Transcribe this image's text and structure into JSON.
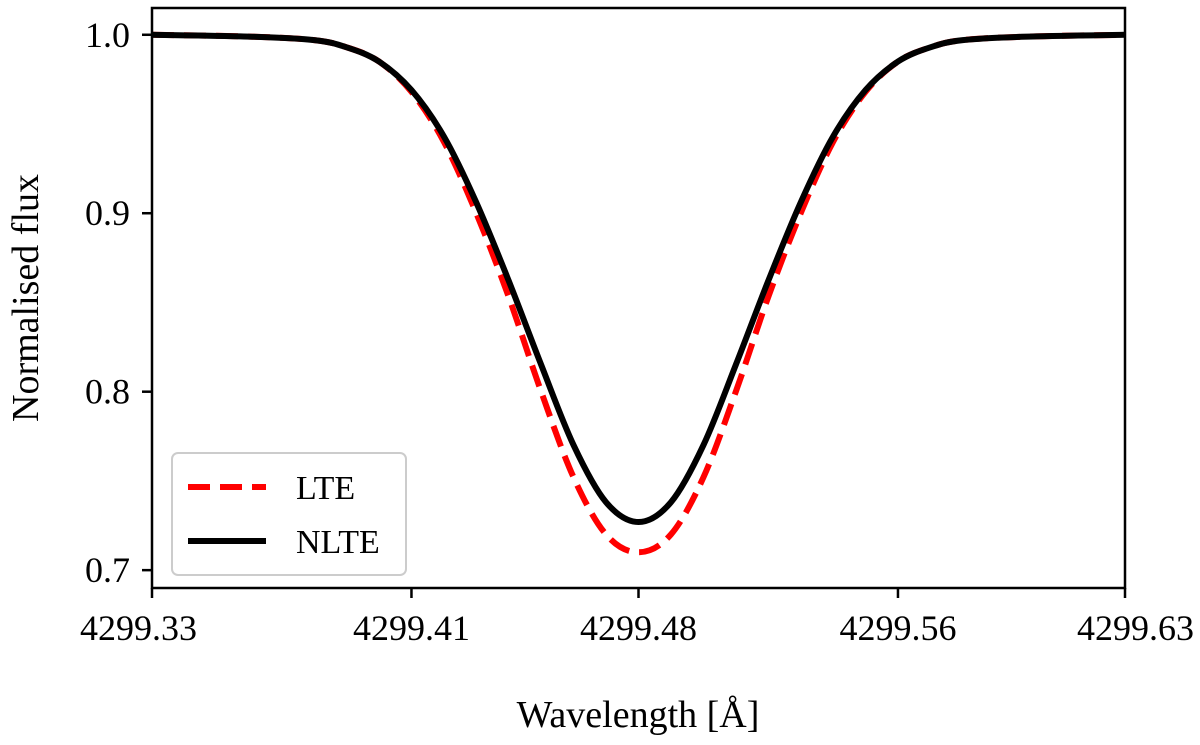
{
  "chart_data": {
    "type": "line",
    "title": "",
    "xlabel": "Wavelength [Å]",
    "ylabel": "Normalised flux",
    "xlim": [
      4299.33,
      4299.63
    ],
    "ylim": [
      0.69,
      1.015
    ],
    "xticks": [
      4299.33,
      4299.41,
      4299.48,
      4299.56,
      4299.63
    ],
    "xtick_labels": [
      "4299.33",
      "4299.41",
      "4299.48",
      "4299.56",
      "4299.63"
    ],
    "yticks": [
      0.7,
      0.8,
      0.9,
      1.0
    ],
    "ytick_labels": [
      "0.7",
      "0.8",
      "0.9",
      "1.0"
    ],
    "grid": false,
    "legend_position": "lower-left",
    "series": [
      {
        "name": "LTE",
        "color": "#ff0000",
        "style": "dashed",
        "x": [
          4299.33,
          4299.36,
          4299.38,
          4299.39,
          4299.4,
          4299.41,
          4299.42,
          4299.43,
          4299.44,
          4299.45,
          4299.46,
          4299.47,
          4299.48,
          4299.49,
          4299.5,
          4299.51,
          4299.52,
          4299.53,
          4299.54,
          4299.55,
          4299.56,
          4299.57,
          4299.58,
          4299.6,
          4299.63
        ],
        "y": [
          1.0,
          0.999,
          0.997,
          0.993,
          0.985,
          0.968,
          0.94,
          0.9,
          0.853,
          0.8,
          0.752,
          0.72,
          0.71,
          0.72,
          0.752,
          0.8,
          0.853,
          0.9,
          0.94,
          0.968,
          0.985,
          0.993,
          0.997,
          0.999,
          1.0
        ]
      },
      {
        "name": "NLTE",
        "color": "#000000",
        "style": "solid",
        "x": [
          4299.33,
          4299.36,
          4299.38,
          4299.39,
          4299.4,
          4299.41,
          4299.42,
          4299.43,
          4299.44,
          4299.45,
          4299.46,
          4299.47,
          4299.48,
          4299.49,
          4299.5,
          4299.51,
          4299.52,
          4299.53,
          4299.54,
          4299.55,
          4299.56,
          4299.57,
          4299.58,
          4299.6,
          4299.63
        ],
        "y": [
          1.0,
          0.999,
          0.997,
          0.993,
          0.985,
          0.969,
          0.943,
          0.906,
          0.862,
          0.815,
          0.77,
          0.738,
          0.727,
          0.738,
          0.77,
          0.815,
          0.862,
          0.906,
          0.943,
          0.969,
          0.985,
          0.993,
          0.997,
          0.999,
          1.0
        ]
      }
    ]
  }
}
